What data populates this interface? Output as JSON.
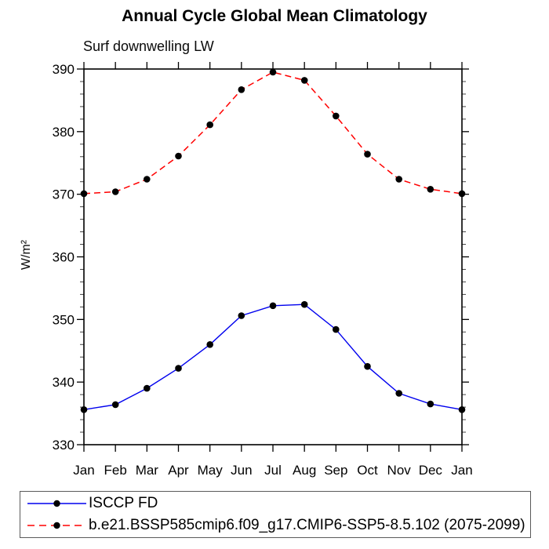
{
  "chart_data": {
    "type": "line",
    "title": "Annual Cycle Global Mean Climatology",
    "subtitle": "Surf downwelling LW",
    "ylabel": "W/m²",
    "xlabel": "",
    "categories": [
      "Jan",
      "Feb",
      "Mar",
      "Apr",
      "May",
      "Jun",
      "Jul",
      "Aug",
      "Sep",
      "Oct",
      "Nov",
      "Dec",
      "Jan"
    ],
    "ylim": [
      330,
      390
    ],
    "yticks": [
      330,
      340,
      350,
      360,
      370,
      380,
      390
    ],
    "ytick_major": 10,
    "ytick_minor": 2,
    "grid": false,
    "legend_position": "bottom",
    "axis_color": "#000000",
    "minor_tick_color": "#444444",
    "marker_color": "#000000",
    "series": [
      {
        "name": "ISCCP FD",
        "color": "#0000ee",
        "style": "solid",
        "values": [
          335.6,
          336.4,
          339.0,
          342.2,
          346.0,
          350.6,
          352.2,
          352.4,
          348.4,
          342.5,
          338.2,
          336.5,
          335.6
        ]
      },
      {
        "name": "b.e21.BSSP585cmip6.f09_g17.CMIP6-SSP5-8.5.102 (2075-2099)",
        "color": "#ff0000",
        "style": "dashed",
        "values": [
          370.1,
          370.4,
          372.4,
          376.1,
          381.1,
          386.7,
          389.5,
          388.2,
          382.5,
          376.4,
          372.4,
          370.8,
          370.1
        ]
      }
    ]
  }
}
